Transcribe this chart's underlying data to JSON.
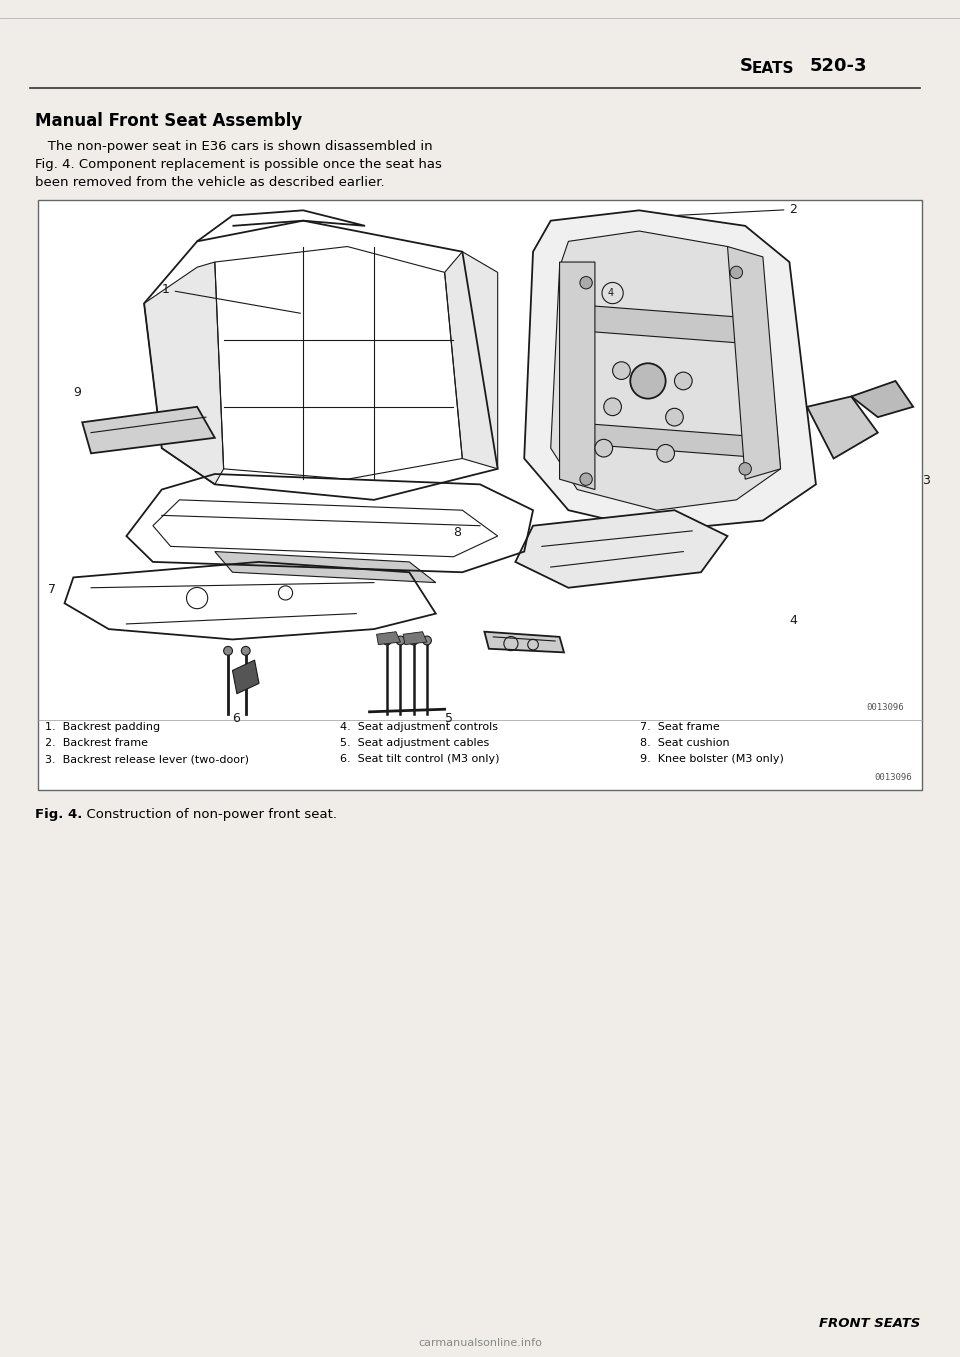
{
  "page_bg": "#f0ede8",
  "content_bg": "#ffffff",
  "header_text_seats": "S",
  "header_text_eats": "EATS",
  "header_text_num": "520-3",
  "header_fontsize": 13,
  "title": "Manual Front Seat Assembly",
  "title_fontsize": 12,
  "body_line1": "   The non-power seat in E36 cars is shown disassembled in",
  "body_line2": "Fig. 4. Component replacement is possible once the seat has",
  "body_line3": "been removed from the vehicle as described earlier.",
  "body_fontsize": 9.5,
  "fig_caption_bold": "Fig. 4.",
  "fig_caption_normal": "  Construction of non-power front seat.",
  "fig_caption_fontsize": 9.5,
  "footer_text": "FRONT SEATS",
  "footer_fontsize": 9.5,
  "watermark": "carmanualsonline.info",
  "legend_col1": [
    "1.  Backrest padding",
    "2.  Backrest frame",
    "3.  Backrest release lever (two-door)"
  ],
  "legend_col2": [
    "4.  Seat adjustment controls",
    "5.  Seat adjustment cables",
    "6.  Seat tilt control (M3 only)"
  ],
  "legend_col3": [
    "7.  Seat frame",
    "8.  Seat cushion",
    "9.  Knee bolster (M3 only)"
  ],
  "legend_fontsize": 8.0,
  "image_code": "0013096",
  "text_color": "#000000",
  "line_color": "#333333"
}
